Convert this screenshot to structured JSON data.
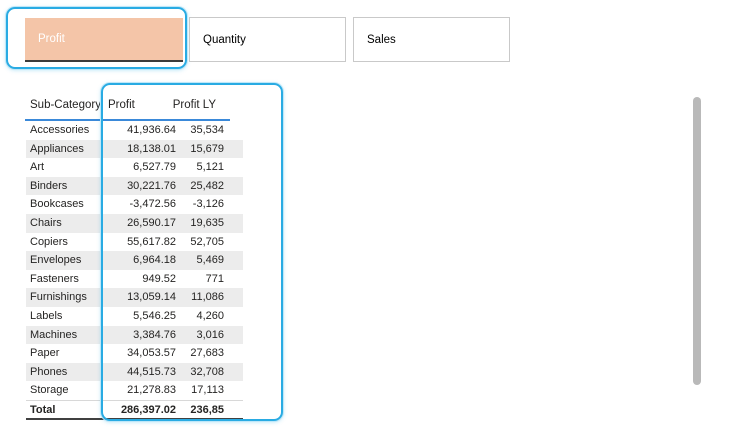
{
  "toolbar": {
    "buttons": [
      {
        "id": "profit",
        "label": "Profit",
        "selected": true
      },
      {
        "id": "quantity",
        "label": "Quantity",
        "selected": false
      },
      {
        "id": "sales",
        "label": "Sales",
        "selected": false
      }
    ]
  },
  "table": {
    "columns": [
      "Sub-Category",
      "Profit",
      "Profit LY"
    ],
    "rows": [
      [
        "Accessories",
        "41,936.64",
        "35,534"
      ],
      [
        "Appliances",
        "18,138.01",
        "15,679"
      ],
      [
        "Art",
        "6,527.79",
        "5,121"
      ],
      [
        "Binders",
        "30,221.76",
        "25,482"
      ],
      [
        "Bookcases",
        "-3,472.56",
        "-3,126"
      ],
      [
        "Chairs",
        "26,590.17",
        "19,635"
      ],
      [
        "Copiers",
        "55,617.82",
        "52,705"
      ],
      [
        "Envelopes",
        "6,964.18",
        "5,469"
      ],
      [
        "Fasteners",
        "949.52",
        "771"
      ],
      [
        "Furnishings",
        "13,059.14",
        "11,086"
      ],
      [
        "Labels",
        "5,546.25",
        "4,260"
      ],
      [
        "Machines",
        "3,384.76",
        "3,016"
      ],
      [
        "Paper",
        "34,053.57",
        "27,683"
      ],
      [
        "Phones",
        "44,515.73",
        "32,708"
      ],
      [
        "Storage",
        "21,278.83",
        "17,113"
      ]
    ],
    "total": [
      "Total",
      "286,397.02",
      "236,85"
    ]
  },
  "colors": {
    "selected_button_fill": "#f4c5a8",
    "selection_outline": "#29abe3",
    "header_underline": "#3a89d9",
    "row_stripe": "#ececec",
    "scrollbar": "#b9b9b9"
  }
}
